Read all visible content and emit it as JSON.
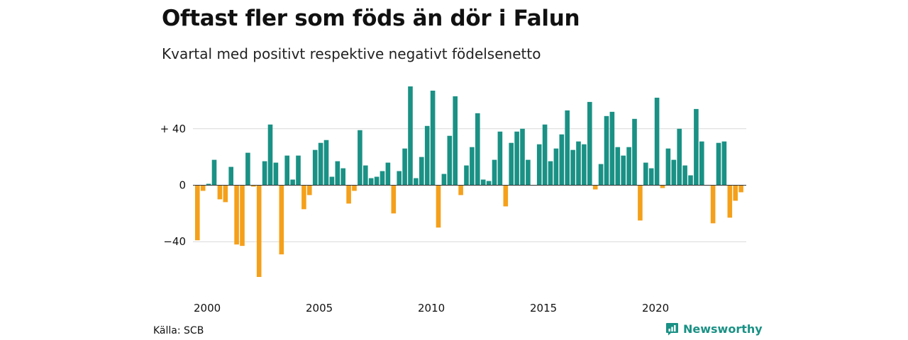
{
  "title": "Oftast fler som föds än dör i Falun",
  "subtitle": "Kvartal med positivt respektive negativt födelsenetto",
  "source": "Källa: SCB",
  "brand": {
    "name": "Newsworthy",
    "icon": "bar-chart-logo-icon"
  },
  "colors": {
    "positive": "#1a9185",
    "negative": "#f5a01a",
    "grid": "#d9d9d9",
    "zero_line": "#333333"
  },
  "chart_data": {
    "type": "bar",
    "x_start": "2000 Q1",
    "x_ticks": [
      "2000",
      "2005",
      "2010",
      "2015",
      "2020"
    ],
    "y_ticks": [
      {
        "value": 40,
        "label": "+ 40"
      },
      {
        "value": 0,
        "label": "0"
      },
      {
        "value": -40,
        "label": "−40"
      }
    ],
    "ylim": [
      -66,
      71
    ],
    "grid": true,
    "values": [
      -39,
      -4,
      1,
      18,
      -10,
      -12,
      13,
      -42,
      -43,
      23,
      -1,
      -65,
      17,
      43,
      16,
      -49,
      21,
      4,
      21,
      -17,
      -7,
      25,
      30,
      32,
      6,
      17,
      12,
      -13,
      -4,
      39,
      14,
      5,
      6,
      10,
      16,
      -20,
      10,
      26,
      70,
      5,
      20,
      42,
      67,
      -30,
      8,
      35,
      63,
      -7,
      14,
      27,
      51,
      4,
      3,
      18,
      38,
      -15,
      30,
      38,
      40,
      18,
      0,
      29,
      43,
      17,
      26,
      36,
      53,
      25,
      31,
      29,
      59,
      -3,
      15,
      49,
      52,
      27,
      21,
      27,
      47,
      -25,
      16,
      12,
      62,
      -2,
      26,
      18,
      40,
      14,
      7,
      54,
      31,
      0,
      -27,
      30,
      31,
      -23,
      -11,
      -5
    ]
  }
}
